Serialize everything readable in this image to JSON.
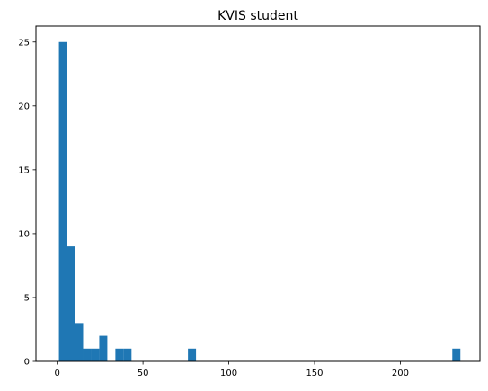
{
  "chart_data": {
    "type": "bar",
    "title": "KVIS student",
    "xlabel": "",
    "ylabel": "",
    "xlim": [
      -12.4,
      246.4
    ],
    "ylim": [
      0,
      26.25
    ],
    "bar_color": "#1f77b4",
    "bin_width": 4.7,
    "x_ticks": [
      0,
      50,
      100,
      150,
      200
    ],
    "y_ticks": [
      0,
      5,
      10,
      15,
      20,
      25
    ],
    "bins": [
      {
        "x0": 1.0,
        "x1": 5.7,
        "count": 25
      },
      {
        "x0": 5.7,
        "x1": 10.4,
        "count": 9
      },
      {
        "x0": 10.4,
        "x1": 15.1,
        "count": 3
      },
      {
        "x0": 15.1,
        "x1": 19.8,
        "count": 1
      },
      {
        "x0": 19.8,
        "x1": 24.5,
        "count": 1
      },
      {
        "x0": 24.5,
        "x1": 29.2,
        "count": 2
      },
      {
        "x0": 33.9,
        "x1": 38.6,
        "count": 1
      },
      {
        "x0": 38.6,
        "x1": 43.3,
        "count": 1
      },
      {
        "x0": 76.2,
        "x1": 80.9,
        "count": 1
      },
      {
        "x0": 230.3,
        "x1": 235.0,
        "count": 1
      }
    ],
    "grid": false,
    "legend": "none"
  }
}
